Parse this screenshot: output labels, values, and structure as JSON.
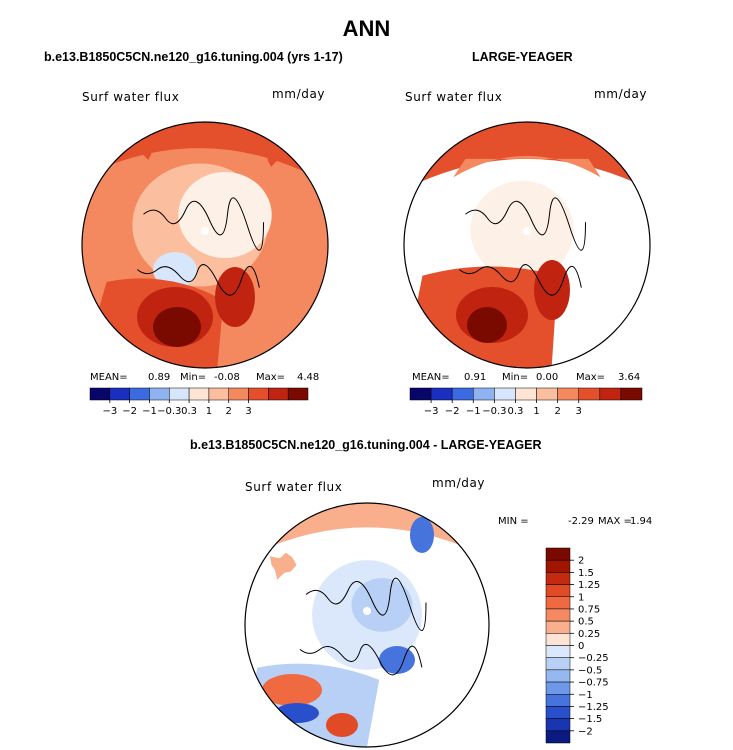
{
  "page_title": "ANN",
  "chart_data": [
    {
      "type": "heatmap",
      "projection": "north-polar-stereographic",
      "title": "b.e13.B1850C5CN.ne120_g16.tuning.004 (yrs 1-17)",
      "variable": "Surf water flux",
      "units": "mm/day",
      "stats": {
        "mean_label": "MEAN=",
        "mean": "0.89",
        "min_label": "Min=",
        "min": "-0.08",
        "max_label": "Max=",
        "max": "4.48"
      },
      "colorbar": {
        "orientation": "horizontal",
        "levels": [
          "-3",
          "-2",
          "-1",
          "-0.3",
          "0.3",
          "1",
          "2",
          "3"
        ],
        "colors": [
          "#08066b",
          "#1a2fbf",
          "#3c6ae0",
          "#8fb3f0",
          "#d8e6fb",
          "#fde5d6",
          "#fbbfa0",
          "#f4895f",
          "#e4502c",
          "#c02410",
          "#7a0a00"
        ]
      }
    },
    {
      "type": "heatmap",
      "projection": "north-polar-stereographic",
      "title": "LARGE-YEAGER",
      "variable": "Surf water flux",
      "units": "mm/day",
      "stats": {
        "mean_label": "MEAN=",
        "mean": "0.91",
        "min_label": "Min=",
        "min": "0.00",
        "max_label": "Max=",
        "max": "3.64"
      },
      "colorbar": {
        "orientation": "horizontal",
        "levels": [
          "-3",
          "-2",
          "-1",
          "-0.3",
          "0.3",
          "1",
          "2",
          "3"
        ],
        "colors": [
          "#08066b",
          "#1a2fbf",
          "#3c6ae0",
          "#8fb3f0",
          "#d8e6fb",
          "#fde5d6",
          "#fbbfa0",
          "#f4895f",
          "#e4502c",
          "#c02410",
          "#7a0a00"
        ]
      }
    },
    {
      "type": "heatmap",
      "projection": "north-polar-stereographic",
      "title": "b.e13.B1850C5CN.ne120_g16.tuning.004 - LARGE-YEAGER",
      "variable": "Surf water flux",
      "units": "mm/day",
      "stats": {
        "min_label": "MIN =",
        "min": "-2.29",
        "max_label": "MAX =",
        "max": "1.94"
      },
      "colorbar": {
        "orientation": "vertical",
        "levels": [
          "2",
          "1.5",
          "1.25",
          "1",
          "0.75",
          "0.5",
          "0.25",
          "0",
          "-0.25",
          "-0.5",
          "-0.75",
          "-1",
          "-1.25",
          "-1.5",
          "-2"
        ],
        "colors": [
          "#7a0a00",
          "#a01500",
          "#c42a10",
          "#e04a24",
          "#ef6a40",
          "#f58a62",
          "#f9ae8c",
          "#fde3d4",
          "#dbe8fb",
          "#b8d0f6",
          "#96b8f0",
          "#6e98e8",
          "#4673dc",
          "#2a4fcc",
          "#1a35b0",
          "#0a1a80"
        ]
      }
    }
  ]
}
